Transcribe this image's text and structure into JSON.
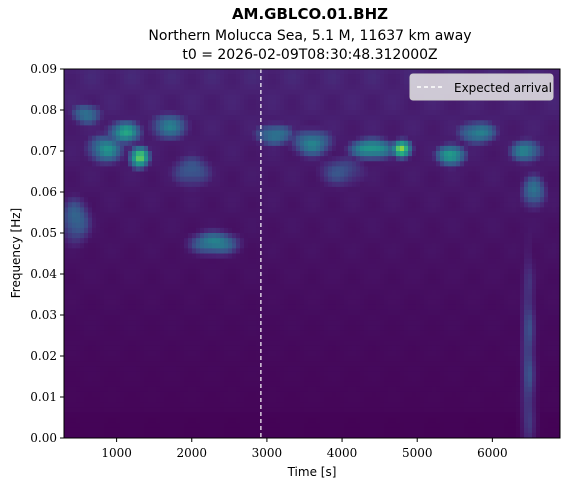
{
  "chart_data": {
    "type": "heatmap",
    "title": "AM.GBLCO.01.BHZ",
    "subtitle_lines": [
      "Northern Molucca Sea, 5.1 M, 11637 km away",
      "t0 = 2026-02-09T08:30:48.312000Z"
    ],
    "xlabel": "Time [s]",
    "ylabel": "Frequency [Hz]",
    "xlim": [
      300,
      6900
    ],
    "ylim": [
      0,
      0.09
    ],
    "xticks": [
      1000,
      2000,
      3000,
      4000,
      5000,
      6000
    ],
    "yticks": [
      0.0,
      0.01,
      0.02,
      0.03,
      0.04,
      0.05,
      0.06,
      0.07,
      0.08,
      0.09
    ],
    "ytick_labels": [
      "0.00",
      "0.01",
      "0.02",
      "0.03",
      "0.04",
      "0.05",
      "0.06",
      "0.07",
      "0.08",
      "0.09"
    ],
    "colormap": "viridis",
    "expected_arrival": {
      "time": 2920,
      "label": "Expected arrival",
      "color": "#ffffff",
      "style": "dashed"
    },
    "legend_position": "upper right",
    "grid": false,
    "hotspots": [
      {
        "t": 1300,
        "f": 0.0685,
        "v": 0.95,
        "st": 90,
        "sf": 0.0018
      },
      {
        "t": 1100,
        "f": 0.0745,
        "v": 0.65,
        "st": 160,
        "sf": 0.002
      },
      {
        "t": 850,
        "f": 0.0705,
        "v": 0.55,
        "st": 180,
        "sf": 0.0025
      },
      {
        "t": 600,
        "f": 0.079,
        "v": 0.45,
        "st": 150,
        "sf": 0.002
      },
      {
        "t": 1700,
        "f": 0.076,
        "v": 0.45,
        "st": 200,
        "sf": 0.0025
      },
      {
        "t": 2300,
        "f": 0.0475,
        "v": 0.55,
        "st": 220,
        "sf": 0.002
      },
      {
        "t": 3100,
        "f": 0.074,
        "v": 0.5,
        "st": 180,
        "sf": 0.002
      },
      {
        "t": 3600,
        "f": 0.072,
        "v": 0.5,
        "st": 200,
        "sf": 0.0025
      },
      {
        "t": 4400,
        "f": 0.0705,
        "v": 0.7,
        "st": 200,
        "sf": 0.0018
      },
      {
        "t": 4800,
        "f": 0.0705,
        "v": 0.95,
        "st": 90,
        "sf": 0.0015
      },
      {
        "t": 5450,
        "f": 0.069,
        "v": 0.75,
        "st": 130,
        "sf": 0.0018
      },
      {
        "t": 5800,
        "f": 0.0745,
        "v": 0.55,
        "st": 180,
        "sf": 0.002
      },
      {
        "t": 6450,
        "f": 0.07,
        "v": 0.55,
        "st": 150,
        "sf": 0.002
      },
      {
        "t": 6550,
        "f": 0.06,
        "v": 0.45,
        "st": 120,
        "sf": 0.003
      },
      {
        "t": 450,
        "f": 0.053,
        "v": 0.4,
        "st": 150,
        "sf": 0.004
      },
      {
        "t": 2000,
        "f": 0.065,
        "v": 0.35,
        "st": 200,
        "sf": 0.003
      },
      {
        "t": 4000,
        "f": 0.065,
        "v": 0.3,
        "st": 250,
        "sf": 0.003
      },
      {
        "t": 6480,
        "f": 0.02,
        "v": 0.28,
        "st": 70,
        "sf": 0.02
      }
    ]
  }
}
